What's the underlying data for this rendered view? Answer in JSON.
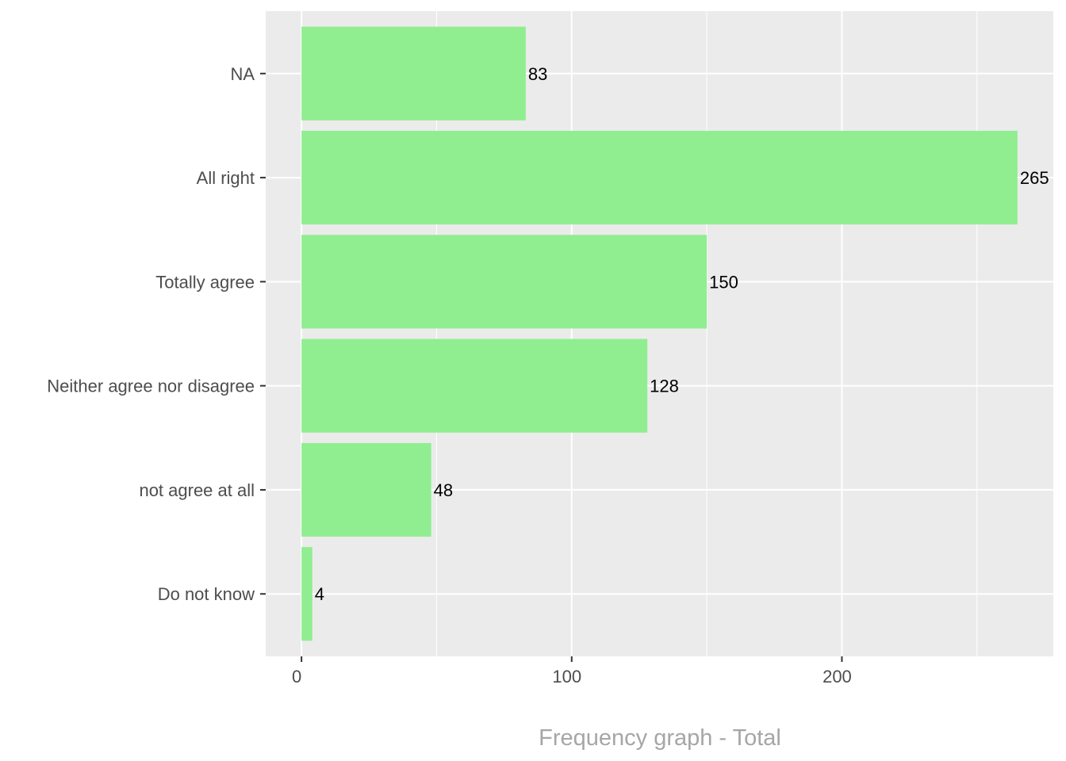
{
  "chart_data": {
    "type": "bar",
    "orientation": "horizontal",
    "categories": [
      "NA",
      "All right",
      "Totally agree",
      "Neither agree nor disagree",
      "not agree at all",
      "Do not know"
    ],
    "values": [
      83,
      265,
      150,
      128,
      48,
      4
    ],
    "data_labels": [
      "83",
      "265",
      "150",
      "128",
      "48",
      "4"
    ],
    "title": "",
    "xlabel": "Frequency graph - Total",
    "ylabel": "",
    "xlim": [
      -13.25,
      278.25
    ],
    "x_ticks": [
      0,
      100,
      200
    ],
    "x_tick_labels": [
      "0",
      "100",
      "200"
    ],
    "x_minor_ticks": [
      50,
      150,
      250
    ],
    "grid": true,
    "legend": "none",
    "colors": {
      "bar": "#90EE90",
      "panel": "#EBEBEB",
      "grid": "#FFFFFF",
      "axis_text": "#4D4D4D",
      "xlabel": "#A6A6A6",
      "label": "#000000"
    }
  }
}
